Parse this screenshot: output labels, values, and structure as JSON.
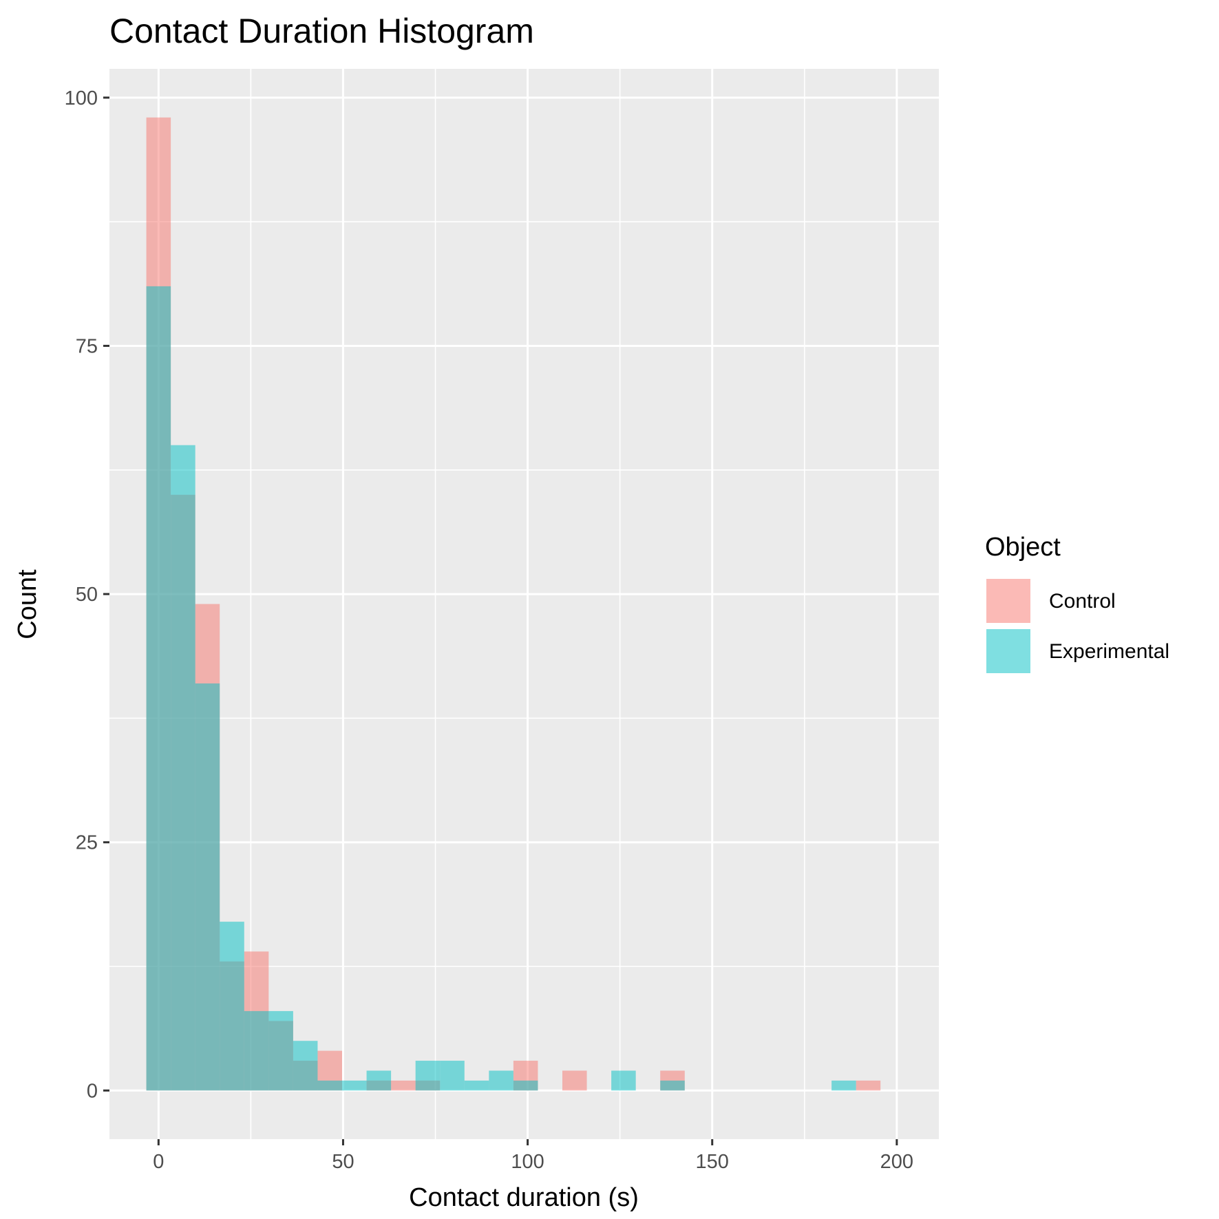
{
  "chart_data": {
    "type": "histogram",
    "title": "Contact Duration Histogram",
    "xlabel": "Contact duration (s)",
    "ylabel": "Count",
    "xlim": [
      -13.3,
      211.4
    ],
    "ylim": [
      -4.9,
      102.9
    ],
    "x_ticks": [
      0,
      50,
      100,
      150,
      200
    ],
    "x_tick_labels": [
      "0",
      "50",
      "100",
      "150",
      "200"
    ],
    "y_ticks": [
      0,
      25,
      50,
      75,
      100
    ],
    "y_tick_labels": [
      "0",
      "25",
      "50",
      "75",
      "100"
    ],
    "bin_width": 6.63,
    "bin_start": -3.31,
    "legend": {
      "title": "Object",
      "position": "right",
      "entries": [
        "Control",
        "Experimental"
      ]
    },
    "series": [
      {
        "name": "Control",
        "color": "#F8766D",
        "values": [
          98,
          60,
          49,
          13,
          14,
          7,
          3,
          4,
          0,
          1,
          1,
          1,
          0,
          0,
          0,
          3,
          0,
          2,
          0,
          0,
          0,
          2,
          0,
          0,
          0,
          0,
          0,
          0,
          0,
          1
        ]
      },
      {
        "name": "Experimental",
        "color": "#00BFC4",
        "values": [
          81,
          65,
          41,
          17,
          8,
          8,
          5,
          1,
          1,
          2,
          0,
          3,
          3,
          1,
          2,
          1,
          0,
          0,
          0,
          2,
          0,
          1,
          0,
          0,
          0,
          0,
          0,
          0,
          1,
          0
        ]
      }
    ]
  }
}
